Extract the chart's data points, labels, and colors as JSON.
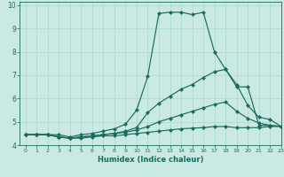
{
  "title": "",
  "xlabel": "Humidex (Indice chaleur)",
  "xlim": [
    -0.5,
    23
  ],
  "ylim": [
    4,
    10.15
  ],
  "yticks": [
    4,
    5,
    6,
    7,
    8,
    9,
    10
  ],
  "xticks": [
    0,
    1,
    2,
    3,
    4,
    5,
    6,
    7,
    8,
    9,
    10,
    11,
    12,
    13,
    14,
    15,
    16,
    17,
    18,
    19,
    20,
    21,
    22,
    23
  ],
  "bg_color": "#cbe9e3",
  "line_color": "#1a6b5e",
  "grid_color": "#a8d8d0",
  "series": [
    [
      4.45,
      4.45,
      4.45,
      4.45,
      4.35,
      4.45,
      4.5,
      4.6,
      4.7,
      4.9,
      5.5,
      6.95,
      9.65,
      9.7,
      9.7,
      9.6,
      9.7,
      8.0,
      7.25,
      6.5,
      6.5,
      4.85,
      4.85,
      4.8
    ],
    [
      4.45,
      4.45,
      4.45,
      4.35,
      4.3,
      4.35,
      4.4,
      4.45,
      4.5,
      4.6,
      4.75,
      5.4,
      5.8,
      6.1,
      6.4,
      6.6,
      6.9,
      7.15,
      7.25,
      6.6,
      5.7,
      5.2,
      5.1,
      4.8
    ],
    [
      4.45,
      4.45,
      4.45,
      4.35,
      4.3,
      4.35,
      4.4,
      4.45,
      4.5,
      4.55,
      4.65,
      4.8,
      5.0,
      5.15,
      5.3,
      5.45,
      5.6,
      5.75,
      5.85,
      5.45,
      5.15,
      4.95,
      4.85,
      4.8
    ],
    [
      4.45,
      4.45,
      4.45,
      4.35,
      4.3,
      4.3,
      4.35,
      4.4,
      4.4,
      4.45,
      4.5,
      4.55,
      4.6,
      4.65,
      4.7,
      4.73,
      4.75,
      4.8,
      4.8,
      4.75,
      4.75,
      4.75,
      4.8,
      4.8
    ]
  ]
}
